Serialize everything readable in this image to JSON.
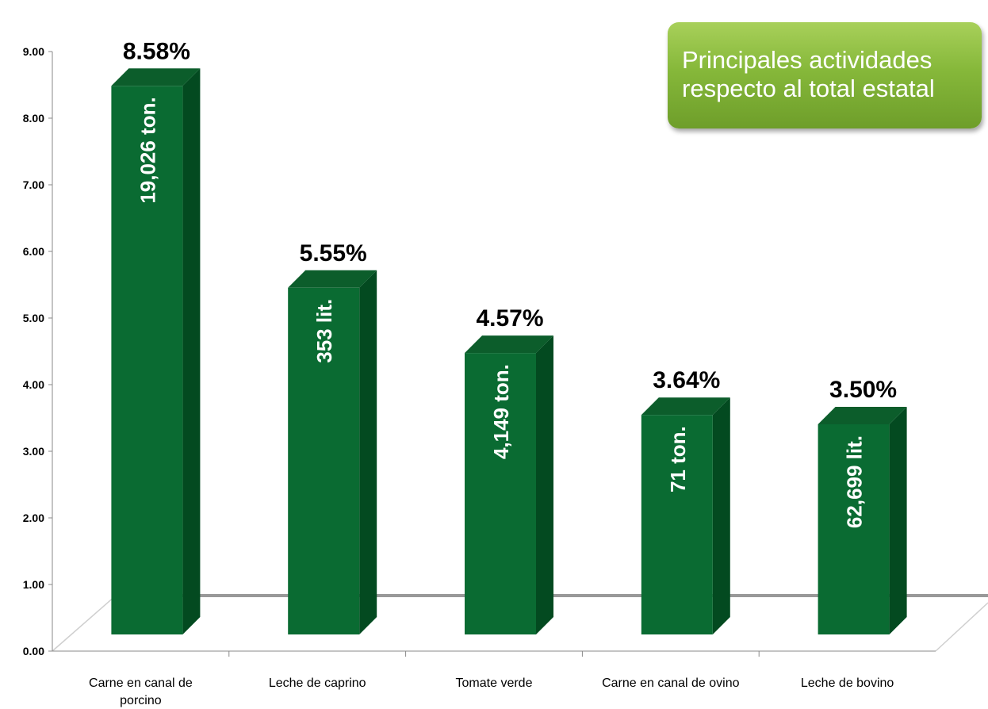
{
  "chart_data": {
    "type": "bar",
    "title": "Principales actividades respecto al total estatal",
    "title_lines": [
      "Principales actividades",
      "respecto al total estatal"
    ],
    "categories": [
      [
        "Carne en canal de",
        "porcino"
      ],
      [
        "Leche de caprino"
      ],
      [
        "Tomate verde"
      ],
      [
        "Carne en canal de ovino"
      ],
      [
        "Leche de bovino"
      ]
    ],
    "values": [
      8.58,
      5.55,
      4.57,
      3.64,
      3.5
    ],
    "value_labels": [
      "8.58%",
      "5.55%",
      "4.57%",
      "3.64%",
      "3.50%"
    ],
    "bar_labels": [
      "19,026 ton.",
      "353 lit.",
      "4,149 ton.",
      "71 ton.",
      "62,699 lit."
    ],
    "ylim": [
      0,
      9
    ],
    "yticks": [
      "0.00",
      "1.00",
      "2.00",
      "3.00",
      "4.00",
      "5.00",
      "6.00",
      "7.00",
      "8.00",
      "9.00"
    ],
    "xlabel": "",
    "ylabel": "",
    "grid": false,
    "legend": "none",
    "colors": {
      "bar_front": "#0a6b32",
      "bar_side": "#034a20",
      "bar_top": "#0c5d2b",
      "title_box": "#8cbc3e",
      "axis": "#888888"
    }
  }
}
